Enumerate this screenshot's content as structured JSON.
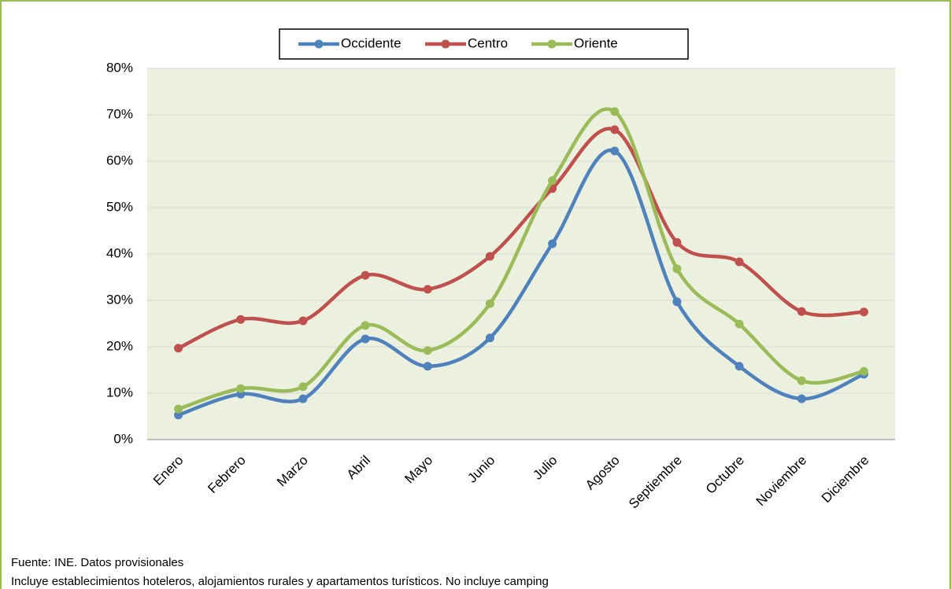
{
  "chart_data": {
    "type": "line",
    "categories": [
      "Enero",
      "Febrero",
      "Marzo",
      "Abril",
      "Mayo",
      "Junio",
      "Julio",
      "Agosto",
      "Septiembre",
      "Octubre",
      "Noviembre",
      "Diciembre"
    ],
    "series": [
      {
        "name": "Occidente",
        "color": "#4f81bd",
        "values": [
          5.3,
          9.8,
          8.8,
          21.7,
          15.8,
          21.9,
          42.2,
          62.2,
          29.7,
          15.8,
          8.8,
          14.1
        ]
      },
      {
        "name": "Centro",
        "color": "#c0504d",
        "values": [
          19.7,
          25.9,
          25.6,
          35.4,
          32.4,
          39.5,
          54.1,
          66.8,
          42.5,
          38.3,
          27.6,
          27.5
        ]
      },
      {
        "name": "Oriente",
        "color": "#9bbb59",
        "values": [
          6.6,
          11.0,
          11.4,
          24.6,
          19.2,
          29.3,
          55.8,
          70.7,
          36.8,
          24.9,
          12.7,
          14.7
        ]
      }
    ],
    "ylim": [
      0,
      80
    ],
    "yticks": [
      {
        "value": 0,
        "label": "0%"
      },
      {
        "value": 10,
        "label": "10%"
      },
      {
        "value": 20,
        "label": "20%"
      },
      {
        "value": 30,
        "label": "30%"
      },
      {
        "value": 40,
        "label": "40%"
      },
      {
        "value": 50,
        "label": "50%"
      },
      {
        "value": 60,
        "label": "60%"
      },
      {
        "value": 70,
        "label": "70%"
      },
      {
        "value": 80,
        "label": "80%"
      }
    ],
    "grid": true,
    "legend": "top",
    "source": "Fuente: INE. Datos provisionales",
    "note": "Incluye establecimientos hoteleros, alojamientos rurales y apartamentos turísticos. No incluye camping"
  }
}
